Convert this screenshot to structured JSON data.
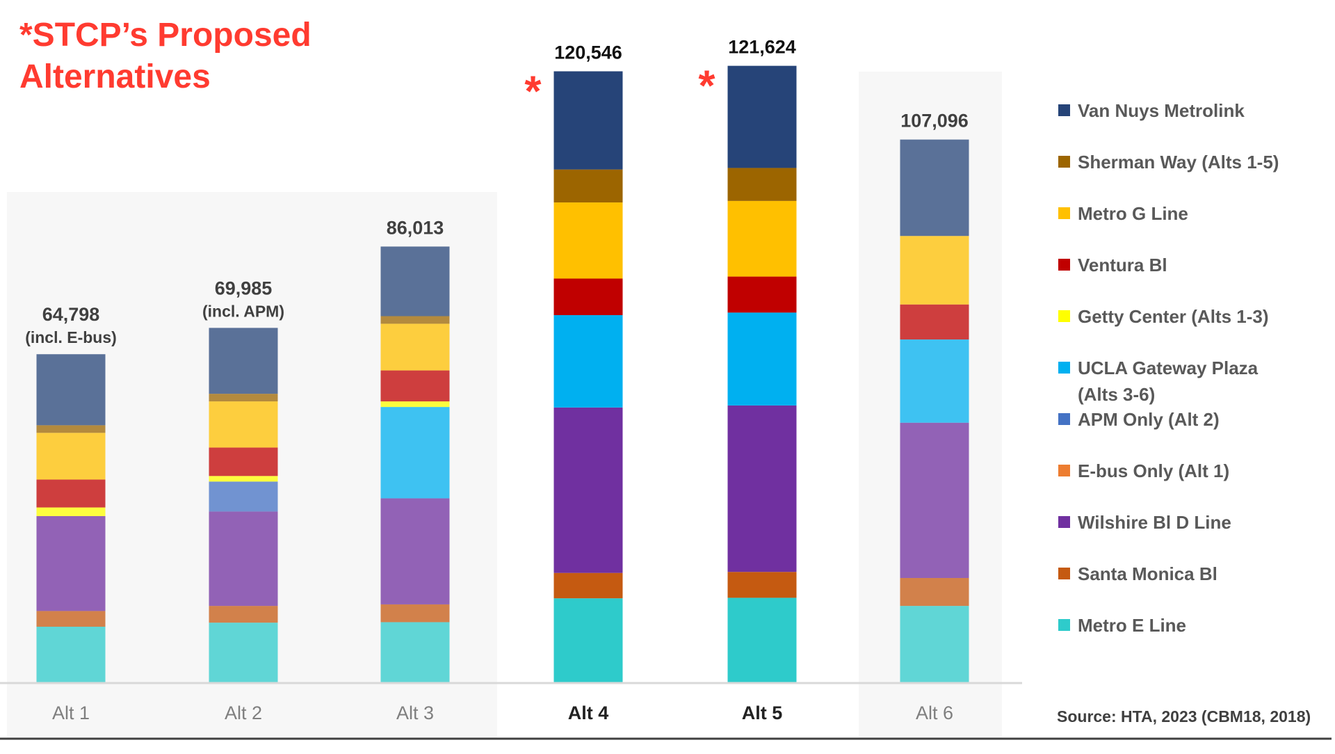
{
  "chart_data": {
    "type": "bar",
    "stacked": true,
    "headline": "*STCP’s Proposed Alternatives",
    "headline_lines": [
      "*STCP’s Proposed",
      "Alternatives"
    ],
    "categories": [
      "Alt 1",
      "Alt 2",
      "Alt 3",
      "Alt 4",
      "Alt 5",
      "Alt 6"
    ],
    "proposed_marker": "*",
    "proposed": [
      false,
      false,
      false,
      true,
      true,
      false
    ],
    "totals": [
      64798,
      69985,
      86013,
      120546,
      121624,
      107096
    ],
    "total_labels": [
      "64,798",
      "69,985",
      "86,013",
      "120,546",
      "121,624",
      "107,096"
    ],
    "total_notes": [
      "(incl. E-bus)",
      "(incl. APM)",
      "",
      "",
      "",
      ""
    ],
    "ylim": [
      0,
      125000
    ],
    "grid": false,
    "legend_position": "right",
    "series": [
      {
        "name": "Metro E Line",
        "color": "#2ECBCB",
        "values": [
          11100,
          11900,
          12000,
          16700,
          16800,
          15200
        ]
      },
      {
        "name": "Santa Monica Bl",
        "color": "#C55A11",
        "values": [
          3100,
          3300,
          3500,
          5000,
          5100,
          5500
        ]
      },
      {
        "name": "Wilshire Bl D Line",
        "color": "#7030A0",
        "values": [
          18700,
          18600,
          20900,
          32600,
          32800,
          30600
        ]
      },
      {
        "name": "E-bus Only (Alt 1)",
        "color": "#ED7D31",
        "values": [
          0,
          0,
          0,
          0,
          0,
          0
        ]
      },
      {
        "name": "APM Only (Alt 2)",
        "color": "#4472C4",
        "values": [
          0,
          5900,
          0,
          0,
          0,
          0
        ]
      },
      {
        "name": "UCLA Gateway Plaza (Alts 3-6)",
        "color": "#00B0F0",
        "values": [
          0,
          0,
          18000,
          18200,
          18300,
          16400
        ]
      },
      {
        "name": "Getty Center (Alts 1-3)",
        "color": "#FFFF00",
        "values": [
          1700,
          1100,
          1100,
          0,
          0,
          0
        ]
      },
      {
        "name": "Ventura Bl",
        "color": "#C00000",
        "values": [
          5500,
          5600,
          6100,
          7200,
          7100,
          6900
        ]
      },
      {
        "name": "Metro G Line",
        "color": "#FFC000",
        "values": [
          9200,
          9100,
          9200,
          15000,
          14900,
          13500
        ]
      },
      {
        "name": "Sherman Way (Alts 1-5)",
        "color": "#9C6500",
        "values": [
          1500,
          1500,
          1500,
          6500,
          6500,
          0
        ]
      },
      {
        "name": "Van Nuys Metrolink",
        "color": "#264478",
        "values": [
          13998,
          12985,
          13713,
          19346,
          20124,
          18996
        ]
      }
    ],
    "legend_order": [
      "Van Nuys Metrolink",
      "Sherman Way (Alts 1-5)",
      "Metro G Line",
      "Ventura Bl",
      "Getty Center (Alts 1-3)",
      "UCLA Gateway Plaza (Alts 3-6)",
      "APM Only (Alt 2)",
      "E-bus Only (Alt 1)",
      "Wilshire Bl D Line",
      "Santa Monica Bl",
      "Metro E Line"
    ],
    "legend_lines": {
      "UCLA Gateway Plaza (Alts 3-6)": [
        "UCLA Gateway Plaza",
        "(Alts 3-6)"
      ]
    },
    "source": "Source: HTA, 2023 (CBM18, 2018)",
    "colors": {
      "headline": "#FF3B30",
      "marker": "#FF3B30",
      "panel": "#F7F7F7",
      "baseline": "#D9D9D9",
      "bottom_rule": "#404040",
      "text_dark": "#222222",
      "text_muted": "#7F7F7F"
    }
  }
}
